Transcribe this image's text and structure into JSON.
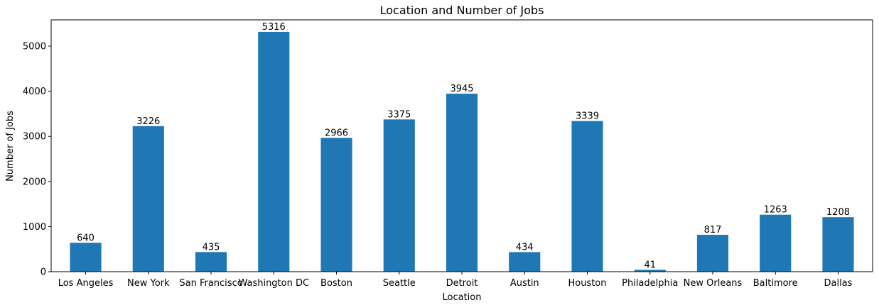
{
  "chart_data": {
    "type": "bar",
    "title": "Location and Number of Jobs",
    "xlabel": "Location",
    "ylabel": "Number of Jobs",
    "categories": [
      "Los Angeles",
      "New York",
      "San Francisco",
      "Washington DC",
      "Boston",
      "Seattle",
      "Detroit",
      "Austin",
      "Houston",
      "Philadelphia",
      "New Orleans",
      "Baltimore",
      "Dallas"
    ],
    "values": [
      640,
      3226,
      435,
      5316,
      2966,
      3375,
      3945,
      434,
      3339,
      41,
      817,
      1263,
      1208
    ],
    "ylim": [
      0,
      5582
    ],
    "yticks": [
      0,
      1000,
      2000,
      3000,
      4000,
      5000
    ],
    "bar_color": "#1f77b4",
    "grid": false,
    "legend": "none"
  }
}
